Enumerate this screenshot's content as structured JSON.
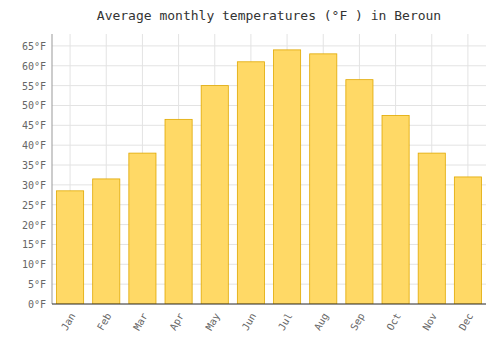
{
  "chart_data": {
    "type": "bar",
    "title": "Average monthly temperatures (°F ) in Beroun",
    "categories": [
      "Jan",
      "Feb",
      "Mar",
      "Apr",
      "May",
      "Jun",
      "Jul",
      "Aug",
      "Sep",
      "Oct",
      "Nov",
      "Dec"
    ],
    "values": [
      28.5,
      31.5,
      38.0,
      46.5,
      55.0,
      61.0,
      64.0,
      63.0,
      56.5,
      47.5,
      38.0,
      32.0
    ],
    "color": "#FFD966",
    "ylim": [
      0,
      68
    ],
    "yticks": [
      {
        "value": 0,
        "label": "0°F"
      },
      {
        "value": 5,
        "label": "5°F"
      },
      {
        "value": 10,
        "label": "10°F"
      },
      {
        "value": 15,
        "label": "15°F"
      },
      {
        "value": 20,
        "label": "20°F"
      },
      {
        "value": 25,
        "label": "25°F"
      },
      {
        "value": 30,
        "label": "30°F"
      },
      {
        "value": 35,
        "label": "35°F"
      },
      {
        "value": 40,
        "label": "40°F"
      },
      {
        "value": 45,
        "label": "45°F"
      },
      {
        "value": 50,
        "label": "50°F"
      },
      {
        "value": 55,
        "label": "55°F"
      },
      {
        "value": 60,
        "label": "60°F"
      },
      {
        "value": 65,
        "label": "65°F"
      }
    ],
    "grid": true
  }
}
